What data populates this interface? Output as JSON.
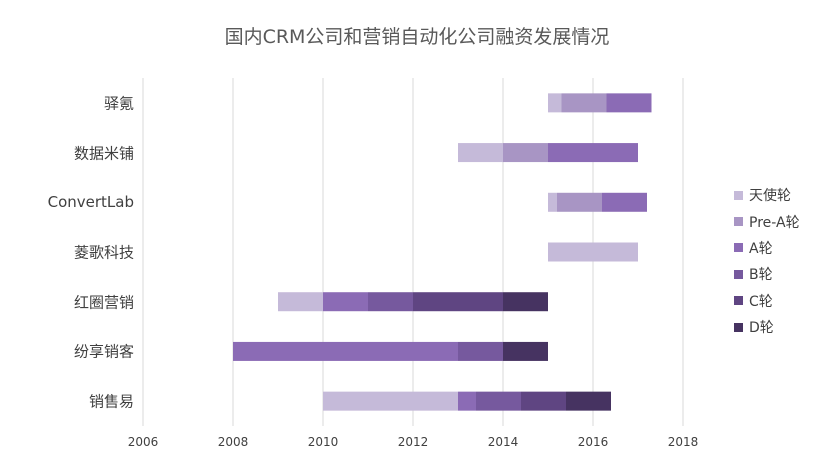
{
  "chart_data": {
    "type": "bar",
    "orientation": "horizontal-stacked-gantt",
    "title": "国内CRM公司和营销自动化公司融资发展情况",
    "xlim": [
      2006,
      2018
    ],
    "xticks": [
      "2006",
      "2008",
      "2010",
      "2012",
      "2014",
      "2016",
      "2018"
    ],
    "grid": true,
    "legend_position": "right",
    "rounds": [
      {
        "name": "天使轮",
        "color": "#c5bad9"
      },
      {
        "name": "Pre-A轮",
        "color": "#a895c4"
      },
      {
        "name": "A轮",
        "color": "#8b6bb5"
      },
      {
        "name": "B轮",
        "color": "#76599e"
      },
      {
        "name": "C轮",
        "color": "#5f4582"
      },
      {
        "name": "D轮",
        "color": "#463361"
      }
    ],
    "categories": [
      "驿氪",
      "数据米铺",
      "ConvertLab",
      "菱歌科技",
      "红圈营销",
      "纷享销客",
      "销售易"
    ],
    "companies": [
      {
        "name": "驿氪",
        "segments": [
          {
            "round": "天使轮",
            "start": 2015.0,
            "end": 2015.3
          },
          {
            "round": "Pre-A轮",
            "start": 2015.3,
            "end": 2016.3
          },
          {
            "round": "A轮",
            "start": 2016.3,
            "end": 2017.3
          }
        ]
      },
      {
        "name": "数据米铺",
        "segments": [
          {
            "round": "天使轮",
            "start": 2013.0,
            "end": 2014.0
          },
          {
            "round": "Pre-A轮",
            "start": 2014.0,
            "end": 2015.0
          },
          {
            "round": "A轮",
            "start": 2015.0,
            "end": 2017.0
          }
        ]
      },
      {
        "name": "ConvertLab",
        "segments": [
          {
            "round": "天使轮",
            "start": 2015.0,
            "end": 2015.2
          },
          {
            "round": "Pre-A轮",
            "start": 2015.2,
            "end": 2016.2
          },
          {
            "round": "A轮",
            "start": 2016.2,
            "end": 2017.2
          }
        ]
      },
      {
        "name": "菱歌科技",
        "segments": [
          {
            "round": "天使轮",
            "start": 2015.0,
            "end": 2017.0
          }
        ]
      },
      {
        "name": "红圈营销",
        "segments": [
          {
            "round": "天使轮",
            "start": 2009.0,
            "end": 2010.0
          },
          {
            "round": "A轮",
            "start": 2010.0,
            "end": 2011.0
          },
          {
            "round": "B轮",
            "start": 2011.0,
            "end": 2012.0
          },
          {
            "round": "C轮",
            "start": 2012.0,
            "end": 2014.0
          },
          {
            "round": "D轮",
            "start": 2014.0,
            "end": 2015.0
          }
        ]
      },
      {
        "name": "纷享销客",
        "segments": [
          {
            "round": "A轮",
            "start": 2008.0,
            "end": 2013.0
          },
          {
            "round": "B轮",
            "start": 2013.0,
            "end": 2014.0
          },
          {
            "round": "D轮",
            "start": 2014.0,
            "end": 2015.0
          }
        ]
      },
      {
        "name": "销售易",
        "segments": [
          {
            "round": "天使轮",
            "start": 2010.0,
            "end": 2013.0
          },
          {
            "round": "A轮",
            "start": 2013.0,
            "end": 2013.4
          },
          {
            "round": "B轮",
            "start": 2013.4,
            "end": 2014.4
          },
          {
            "round": "C轮",
            "start": 2014.4,
            "end": 2015.4
          },
          {
            "round": "D轮",
            "start": 2015.4,
            "end": 2016.4
          }
        ]
      }
    ]
  }
}
